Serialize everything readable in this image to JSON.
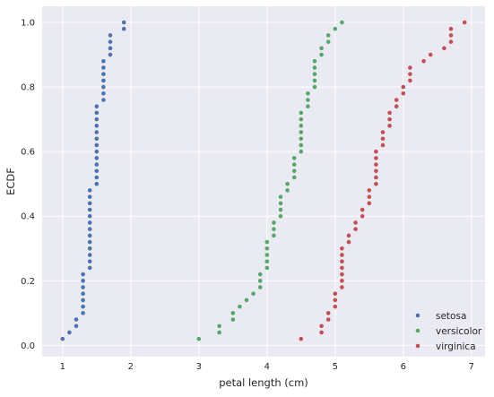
{
  "chart_data": {
    "type": "scatter",
    "title": "",
    "xlabel": "petal length (cm)",
    "ylabel": "ECDF",
    "xlim": [
      0.7,
      7.2
    ],
    "ylim": [
      -0.035,
      1.05
    ],
    "xticks": [
      1,
      2,
      3,
      4,
      5,
      6,
      7
    ],
    "yticks": [
      0.0,
      0.2,
      0.4,
      0.6,
      0.8,
      1.0
    ],
    "ytick_labels": [
      "0.0",
      "0.2",
      "0.4",
      "0.6",
      "0.8",
      "1.0"
    ],
    "grid": true,
    "legend_position": "bottom-right",
    "series": [
      {
        "name": "setosa",
        "color": "#4C72B0",
        "x": [
          1.0,
          1.1,
          1.2,
          1.2,
          1.3,
          1.3,
          1.3,
          1.3,
          1.3,
          1.3,
          1.3,
          1.4,
          1.4,
          1.4,
          1.4,
          1.4,
          1.4,
          1.4,
          1.4,
          1.4,
          1.4,
          1.4,
          1.4,
          1.4,
          1.5,
          1.5,
          1.5,
          1.5,
          1.5,
          1.5,
          1.5,
          1.5,
          1.5,
          1.5,
          1.5,
          1.5,
          1.5,
          1.6,
          1.6,
          1.6,
          1.6,
          1.6,
          1.6,
          1.6,
          1.7,
          1.7,
          1.7,
          1.7,
          1.9,
          1.9
        ],
        "y": [
          0.02,
          0.04,
          0.06,
          0.08,
          0.1,
          0.12,
          0.14,
          0.16,
          0.18,
          0.2,
          0.22,
          0.24,
          0.26,
          0.28,
          0.3,
          0.32,
          0.34,
          0.36,
          0.38,
          0.4,
          0.42,
          0.44,
          0.46,
          0.48,
          0.5,
          0.52,
          0.54,
          0.56,
          0.58,
          0.6,
          0.62,
          0.64,
          0.66,
          0.68,
          0.7,
          0.72,
          0.74,
          0.76,
          0.78,
          0.8,
          0.82,
          0.84,
          0.86,
          0.88,
          0.9,
          0.92,
          0.94,
          0.96,
          0.98,
          1.0
        ]
      },
      {
        "name": "versicolor",
        "color": "#55A868",
        "x": [
          3.0,
          3.3,
          3.3,
          3.5,
          3.5,
          3.6,
          3.7,
          3.8,
          3.9,
          3.9,
          3.9,
          4.0,
          4.0,
          4.0,
          4.0,
          4.0,
          4.1,
          4.1,
          4.1,
          4.2,
          4.2,
          4.2,
          4.2,
          4.3,
          4.3,
          4.4,
          4.4,
          4.4,
          4.4,
          4.5,
          4.5,
          4.5,
          4.5,
          4.5,
          4.5,
          4.5,
          4.6,
          4.6,
          4.6,
          4.7,
          4.7,
          4.7,
          4.7,
          4.7,
          4.8,
          4.8,
          4.9,
          4.9,
          5.0,
          5.1
        ],
        "y": [
          0.02,
          0.04,
          0.06,
          0.08,
          0.1,
          0.12,
          0.14,
          0.16,
          0.18,
          0.2,
          0.22,
          0.24,
          0.26,
          0.28,
          0.3,
          0.32,
          0.34,
          0.36,
          0.38,
          0.4,
          0.42,
          0.44,
          0.46,
          0.48,
          0.5,
          0.52,
          0.54,
          0.56,
          0.58,
          0.6,
          0.62,
          0.64,
          0.66,
          0.68,
          0.7,
          0.72,
          0.74,
          0.76,
          0.78,
          0.8,
          0.82,
          0.84,
          0.86,
          0.88,
          0.9,
          0.92,
          0.94,
          0.96,
          0.98,
          1.0
        ]
      },
      {
        "name": "virginica",
        "color": "#C44E52",
        "x": [
          4.5,
          4.8,
          4.8,
          4.9,
          4.9,
          5.0,
          5.0,
          5.0,
          5.1,
          5.1,
          5.1,
          5.1,
          5.1,
          5.1,
          5.1,
          5.2,
          5.2,
          5.3,
          5.3,
          5.4,
          5.4,
          5.5,
          5.5,
          5.5,
          5.6,
          5.6,
          5.6,
          5.6,
          5.6,
          5.6,
          5.7,
          5.7,
          5.7,
          5.8,
          5.8,
          5.8,
          5.9,
          5.9,
          6.0,
          6.0,
          6.1,
          6.1,
          6.1,
          6.3,
          6.4,
          6.6,
          6.7,
          6.7,
          6.7,
          6.9
        ],
        "y": [
          0.02,
          0.04,
          0.06,
          0.08,
          0.1,
          0.12,
          0.14,
          0.16,
          0.18,
          0.2,
          0.22,
          0.24,
          0.26,
          0.28,
          0.3,
          0.32,
          0.34,
          0.36,
          0.38,
          0.4,
          0.42,
          0.44,
          0.46,
          0.48,
          0.5,
          0.52,
          0.54,
          0.56,
          0.58,
          0.6,
          0.62,
          0.64,
          0.66,
          0.68,
          0.7,
          0.72,
          0.74,
          0.76,
          0.78,
          0.8,
          0.82,
          0.84,
          0.86,
          0.88,
          0.9,
          0.92,
          0.94,
          0.96,
          0.98,
          1.0
        ]
      }
    ],
    "background_color": "#EAEAF2",
    "grid_color": "#FFFFFF"
  }
}
